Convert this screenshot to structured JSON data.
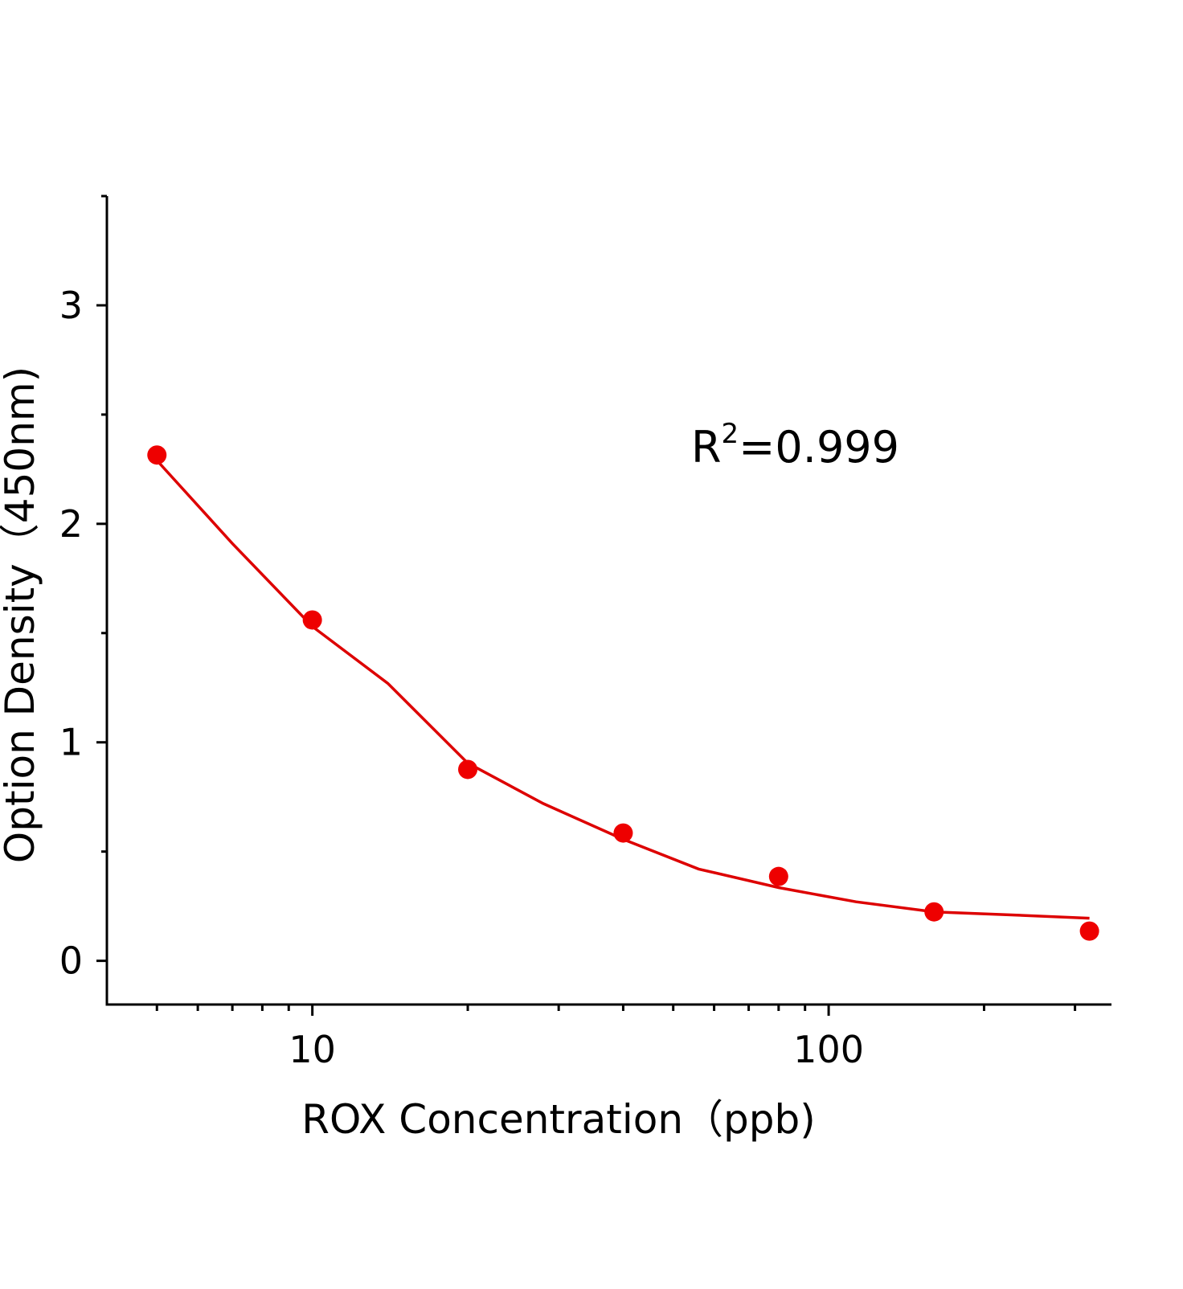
{
  "chart_data": {
    "type": "scatter",
    "xlabel": "ROX Concentration（ppb)",
    "ylabel": "Option Density（450nm)",
    "annotation": [
      "R",
      "2",
      "=0.999"
    ],
    "x": [
      5,
      10,
      20,
      40,
      80,
      160,
      320
    ],
    "series": [
      {
        "color": "#ee0000",
        "values": [
          2.315,
          1.56,
          0.876,
          0.585,
          0.386,
          0.224,
          0.136
        ]
      }
    ],
    "fit": {
      "color": "#dd0000",
      "x": [
        5,
        7,
        10,
        14,
        20,
        28,
        40,
        56,
        80,
        113,
        160,
        226,
        320
      ],
      "values": [
        2.29,
        1.91,
        1.53,
        1.27,
        0.905,
        0.72,
        0.556,
        0.42,
        0.335,
        0.27,
        0.224,
        0.21,
        0.195
      ]
    },
    "xscale": "log",
    "xlim": [
      4,
      353
    ],
    "xticks": [
      10,
      100
    ],
    "xminorticks": [
      5,
      6,
      7,
      8,
      9,
      20,
      30,
      40,
      50,
      60,
      70,
      80,
      90,
      200,
      300
    ],
    "ylim": [
      -0.2,
      3.5
    ],
    "yticks": [
      0,
      1,
      2,
      3
    ],
    "yminorticks": [
      0.5,
      1.5,
      2.5,
      3.5
    ]
  }
}
